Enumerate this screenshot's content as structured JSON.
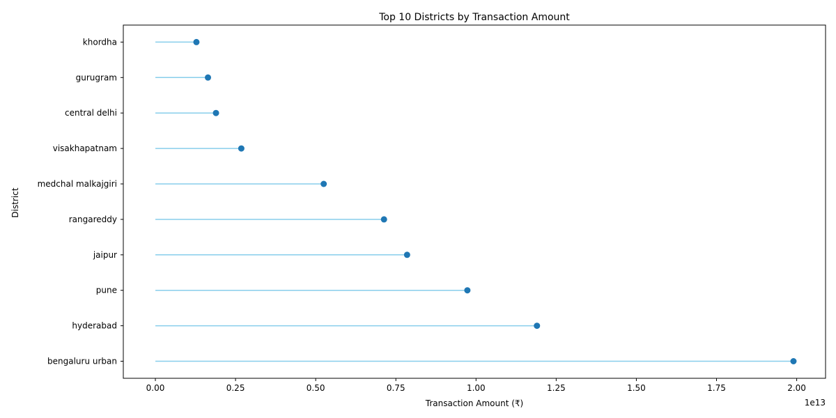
{
  "chart_data": {
    "type": "lollipop",
    "title": "Top 10 Districts by Transaction Amount",
    "xlabel": "Transaction Amount (₹)",
    "ylabel": "District",
    "x_scale_offset": "1e13",
    "xlim": [
      -0.1,
      2.09
    ],
    "x_ticks": [
      "0.00",
      "0.25",
      "0.50",
      "0.75",
      "1.00",
      "1.25",
      "1.50",
      "1.75",
      "2.00"
    ],
    "x_tick_values": [
      0,
      0.25,
      0.5,
      0.75,
      1.0,
      1.25,
      1.5,
      1.75,
      2.0
    ],
    "categories": [
      "bengaluru urban",
      "hyderabad",
      "pune",
      "jaipur",
      "rangareddy",
      "medchal malkajgiri",
      "visakhapatnam",
      "central delhi",
      "gurugram",
      "khordha"
    ],
    "values": [
      1.99,
      1.19,
      0.973,
      0.785,
      0.713,
      0.525,
      0.268,
      0.189,
      0.164,
      0.128
    ],
    "value_unit_multiplier": "1e13",
    "grid": false,
    "colors": {
      "stem": "#87ceeb",
      "marker": "#1f77b4"
    }
  }
}
